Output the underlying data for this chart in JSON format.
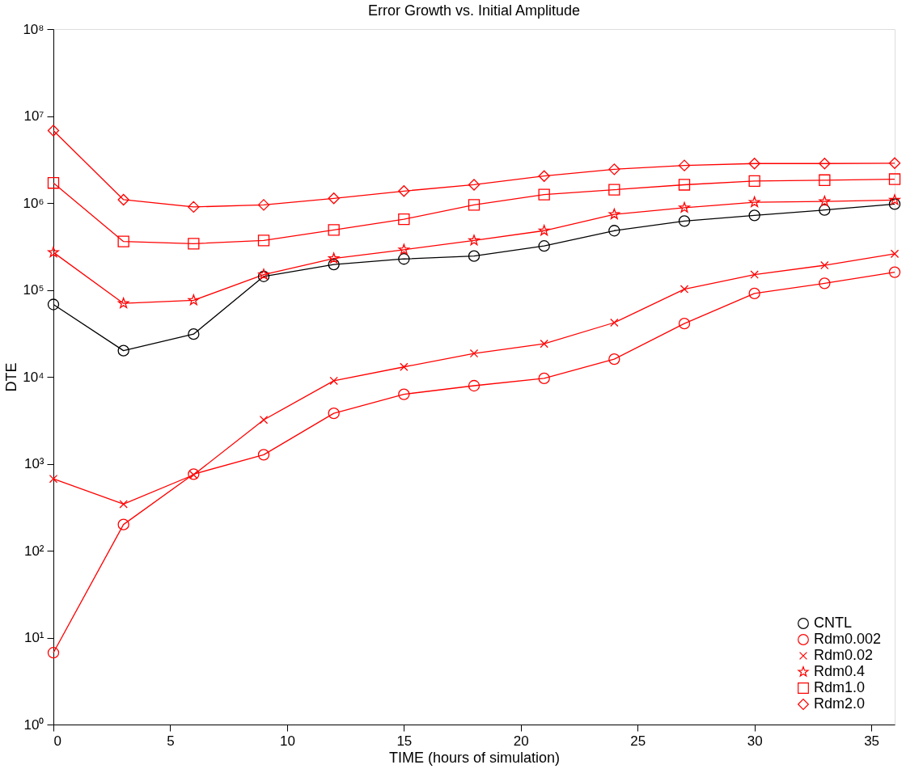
{
  "chart_data": {
    "type": "line",
    "title": "Error Growth vs. Initial Amplitude",
    "xlabel": "TIME (hours of simulation)",
    "ylabel": "DTE",
    "x": [
      0,
      3,
      6,
      9,
      12,
      15,
      18,
      21,
      24,
      27,
      30,
      33,
      36
    ],
    "series": [
      {
        "name": "CNTL",
        "color": "#000000",
        "marker": "circle",
        "values": [
          68000,
          20000,
          31000,
          143000,
          196000,
          227000,
          245000,
          320000,
          480000,
          620000,
          720000,
          830000,
          970000
        ]
      },
      {
        "name": "Rdm0.002",
        "color": "#ff0000",
        "marker": "circle",
        "values": [
          6.7,
          200,
          760,
          1270,
          3800,
          6300,
          7900,
          9600,
          16000,
          41000,
          91000,
          119000,
          160000
        ]
      },
      {
        "name": "Rdm0.02",
        "color": "#ff0000",
        "marker": "cross",
        "values": [
          670,
          343,
          745,
          3200,
          9000,
          13000,
          18600,
          24000,
          42000,
          102000,
          150000,
          192000,
          260000
        ]
      },
      {
        "name": "Rdm0.4",
        "color": "#ff0000",
        "marker": "star",
        "values": [
          270000,
          70000,
          76000,
          150000,
          230000,
          290000,
          370000,
          480000,
          740000,
          880000,
          1020000,
          1040000,
          1080000
        ]
      },
      {
        "name": "Rdm1.0",
        "color": "#ff0000",
        "marker": "square",
        "values": [
          1700000,
          360000,
          340000,
          370000,
          490000,
          650000,
          950000,
          1250000,
          1420000,
          1620000,
          1790000,
          1830000,
          1880000
        ]
      },
      {
        "name": "Rdm2.0",
        "color": "#ff0000",
        "marker": "diamond",
        "values": [
          6800000,
          1090000,
          900000,
          950000,
          1130000,
          1370000,
          1620000,
          2040000,
          2440000,
          2700000,
          2840000,
          2840000,
          2870000
        ]
      }
    ],
    "xlim": [
      0,
      36
    ],
    "xticks": [
      0,
      5,
      10,
      15,
      20,
      25,
      30,
      35
    ],
    "ylim": [
      1,
      100000000
    ],
    "yticks": [
      {
        "value": 1,
        "label": "10⁰"
      },
      {
        "value": 10,
        "label": "10¹"
      },
      {
        "value": 100,
        "label": "10²"
      },
      {
        "value": 1000,
        "label": "10³"
      },
      {
        "value": 10000,
        "label": "10⁴"
      },
      {
        "value": 100000,
        "label": "10⁵"
      },
      {
        "value": 1000000,
        "label": "10⁶"
      },
      {
        "value": 10000000,
        "label": "10⁷"
      },
      {
        "value": 100000000,
        "label": "10⁸"
      }
    ],
    "log": "y",
    "grid": false,
    "legend": "bottom right",
    "line_style": "solid"
  }
}
